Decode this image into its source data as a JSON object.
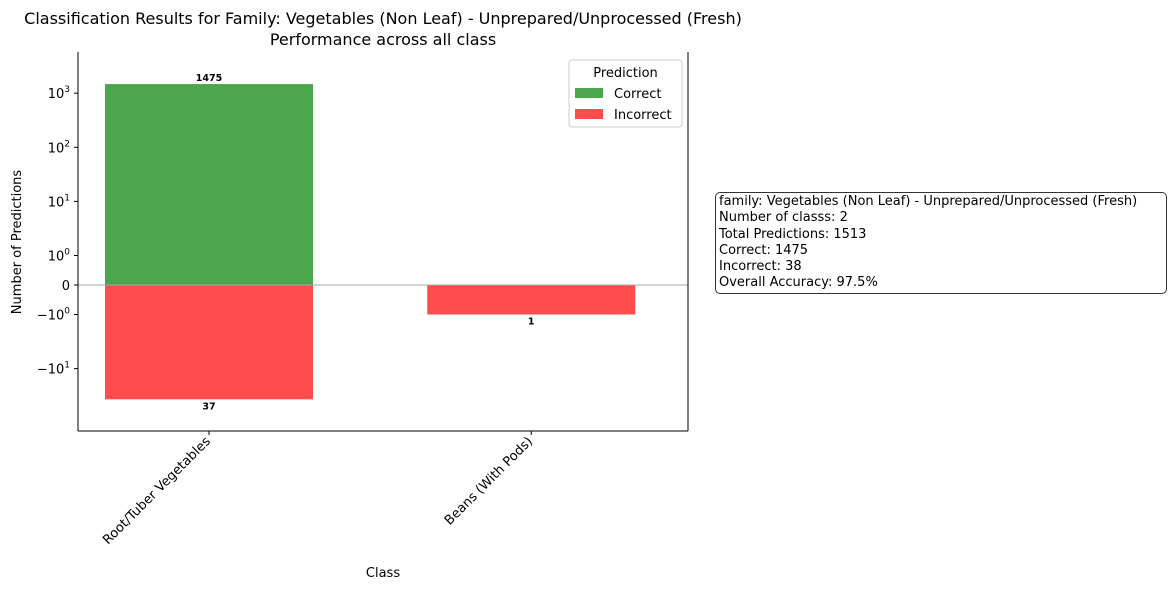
{
  "chart_data": {
    "type": "bar",
    "title": "Classification Results for Family: Vegetables (Non Leaf) - Unprepared/Unprocessed (Fresh)",
    "subtitle": "Performance across all class",
    "xlabel": "Class",
    "ylabel": "Number of Predictions",
    "y_scale": "symlog",
    "categories": [
      "Root/Tuber Vegetables",
      "Beans (With Pods)"
    ],
    "series": [
      {
        "name": "Correct",
        "values": [
          1475,
          0
        ],
        "color": "#4ca64c",
        "direction": "up"
      },
      {
        "name": "Incorrect",
        "values": [
          37,
          1
        ],
        "color": "#ff4c4c",
        "direction": "down"
      }
    ],
    "data_labels": [
      "1475",
      "37",
      "1"
    ],
    "y_ticks": [
      "10^3",
      "10^2",
      "10^1",
      "10^0",
      "0",
      "−10^0",
      "−10^1"
    ],
    "legend": {
      "title": "Prediction",
      "position": "top-right",
      "entries": [
        "Correct",
        "Incorrect"
      ]
    },
    "zero_line": true,
    "grid": false
  },
  "stats": {
    "lines": [
      "family: Vegetables (Non Leaf) - Unprepared/Unprocessed (Fresh)",
      "Number of classs: 2",
      "Total Predictions: 1513",
      "Correct: 1475",
      "Incorrect: 38",
      "Overall Accuracy: 97.5%"
    ]
  }
}
